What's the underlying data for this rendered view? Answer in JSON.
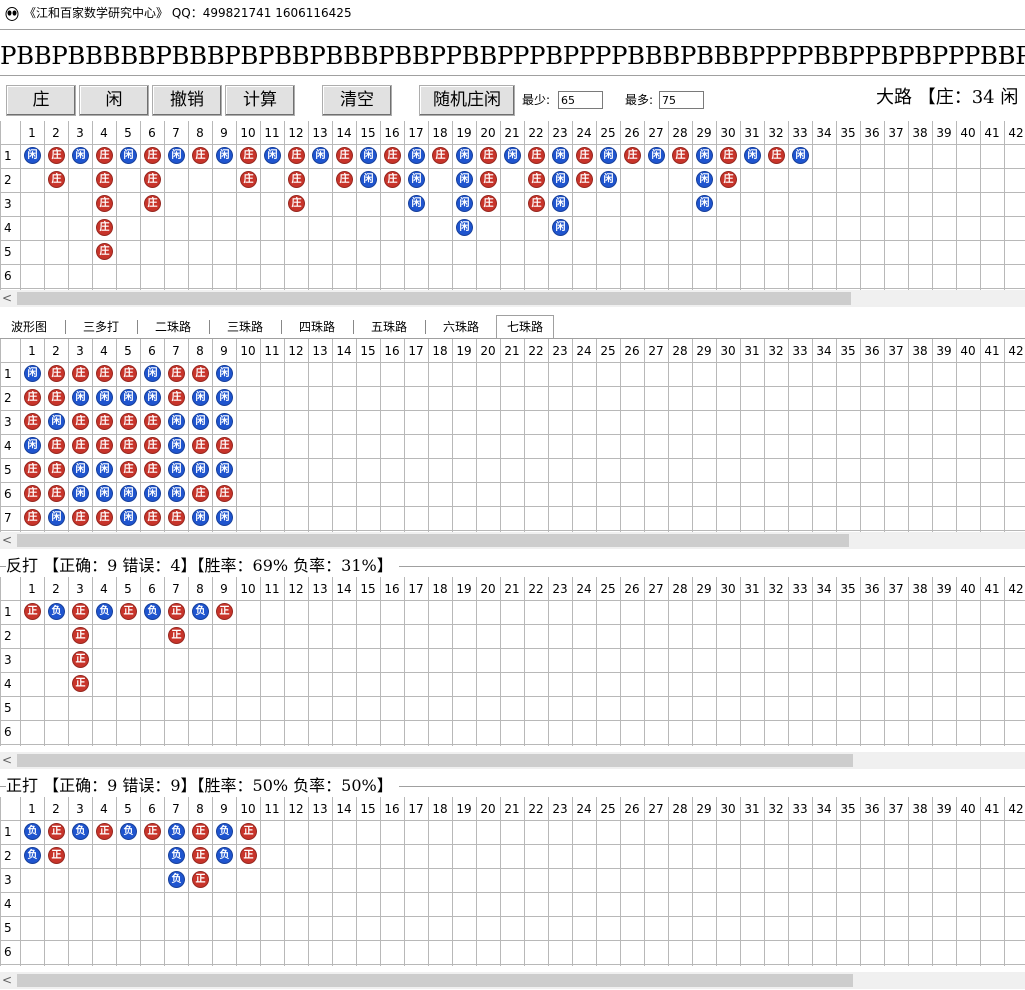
{
  "window": {
    "title": "《江和百家数学研究中心》 QQ：499821741 1606116425",
    "icon": "alien-icon"
  },
  "sequence": "PBBPBBBBBPBBBPBPBBPBBBPBBPPBBPPPBPPPPBBBPBBBPPPPBBPPBPBPPPBBPBP",
  "toolbar": {
    "buttons": [
      "庄",
      "闲",
      "撤销",
      "计算",
      "清空",
      "随机庄闲"
    ],
    "min_label": "最少:",
    "min_value": "65",
    "max_label": "最多:",
    "max_value": "75",
    "dalu_summary": "大路 【庄：34 闲"
  },
  "colors": {
    "banker": "#c8342a",
    "player": "#1f55cf"
  },
  "dalu": {
    "columns": 42,
    "rows": 6,
    "beads": [
      [
        "闲"
      ],
      [
        "庄",
        "庄"
      ],
      [
        "闲"
      ],
      [
        "庄",
        "庄",
        "庄",
        "庄",
        "庄"
      ],
      [
        "闲"
      ],
      [
        "庄",
        "庄",
        "庄"
      ],
      [
        "闲"
      ],
      [
        "庄"
      ],
      [
        "闲"
      ],
      [
        "庄",
        "庄"
      ],
      [
        "闲"
      ],
      [
        "庄",
        "庄",
        "庄"
      ],
      [
        "闲"
      ],
      [
        "庄",
        "庄"
      ],
      [
        "闲",
        "闲"
      ],
      [
        "庄",
        "庄"
      ],
      [
        "闲",
        "闲",
        "闲"
      ],
      [
        "庄"
      ],
      [
        "闲",
        "闲",
        "闲",
        "闲"
      ],
      [
        "庄",
        "庄",
        "庄"
      ],
      [
        "闲"
      ],
      [
        "庄",
        "庄",
        "庄"
      ],
      [
        "闲",
        "闲",
        "闲",
        "闲"
      ],
      [
        "庄",
        "庄"
      ],
      [
        "闲",
        "闲"
      ],
      [
        "庄"
      ],
      [
        "闲"
      ],
      [
        "庄"
      ],
      [
        "闲",
        "闲",
        "闲"
      ],
      [
        "庄",
        "庄"
      ],
      [
        "闲"
      ],
      [
        "庄"
      ],
      [
        "闲"
      ]
    ]
  },
  "tabs": {
    "items": [
      "波形图",
      "三多打",
      "二珠路",
      "三珠路",
      "四珠路",
      "五珠路",
      "六珠路",
      "七珠路"
    ],
    "active": "七珠路"
  },
  "seven_bead": {
    "columns": 42,
    "rows": 7,
    "beads": [
      [
        "闲",
        "庄",
        "庄",
        "闲",
        "庄",
        "庄",
        "庄"
      ],
      [
        "庄",
        "庄",
        "闲",
        "庄",
        "庄",
        "庄",
        "闲"
      ],
      [
        "庄",
        "闲",
        "庄",
        "庄",
        "闲",
        "闲",
        "庄"
      ],
      [
        "庄",
        "闲",
        "庄",
        "庄",
        "闲",
        "闲",
        "庄"
      ],
      [
        "庄",
        "闲",
        "庄",
        "庄",
        "庄",
        "闲",
        "闲"
      ],
      [
        "闲",
        "闲",
        "庄",
        "庄",
        "庄",
        "闲",
        "庄"
      ],
      [
        "庄",
        "庄",
        "闲",
        "闲",
        "闲",
        "闲",
        "庄"
      ],
      [
        "庄",
        "闲",
        "闲",
        "庄",
        "闲",
        "庄",
        "闲"
      ],
      [
        "闲",
        "闲",
        "闲",
        "庄",
        "闲",
        "庄",
        "闲"
      ]
    ]
  },
  "reverse_play": {
    "header": "反打 【正确：9 错误：4】【胜率：69% 负率：31%】",
    "columns": 42,
    "rows": 6,
    "beads": [
      [
        "正"
      ],
      [
        "负"
      ],
      [
        "正",
        "正",
        "正",
        "正"
      ],
      [
        "负"
      ],
      [
        "正"
      ],
      [
        "负"
      ],
      [
        "正",
        "正"
      ],
      [
        "负"
      ],
      [
        "正"
      ]
    ]
  },
  "forward_play": {
    "header": "正打 【正确：9 错误：9】【胜率：50% 负率：50%】",
    "columns": 42,
    "rows": 6,
    "beads": [
      [
        "负",
        "负"
      ],
      [
        "正",
        "正"
      ],
      [
        "负"
      ],
      [
        "正"
      ],
      [
        "负"
      ],
      [
        "正"
      ],
      [
        "负",
        "负",
        "负"
      ],
      [
        "正",
        "正",
        "正"
      ],
      [
        "负",
        "负"
      ],
      [
        "正",
        "正"
      ]
    ]
  }
}
